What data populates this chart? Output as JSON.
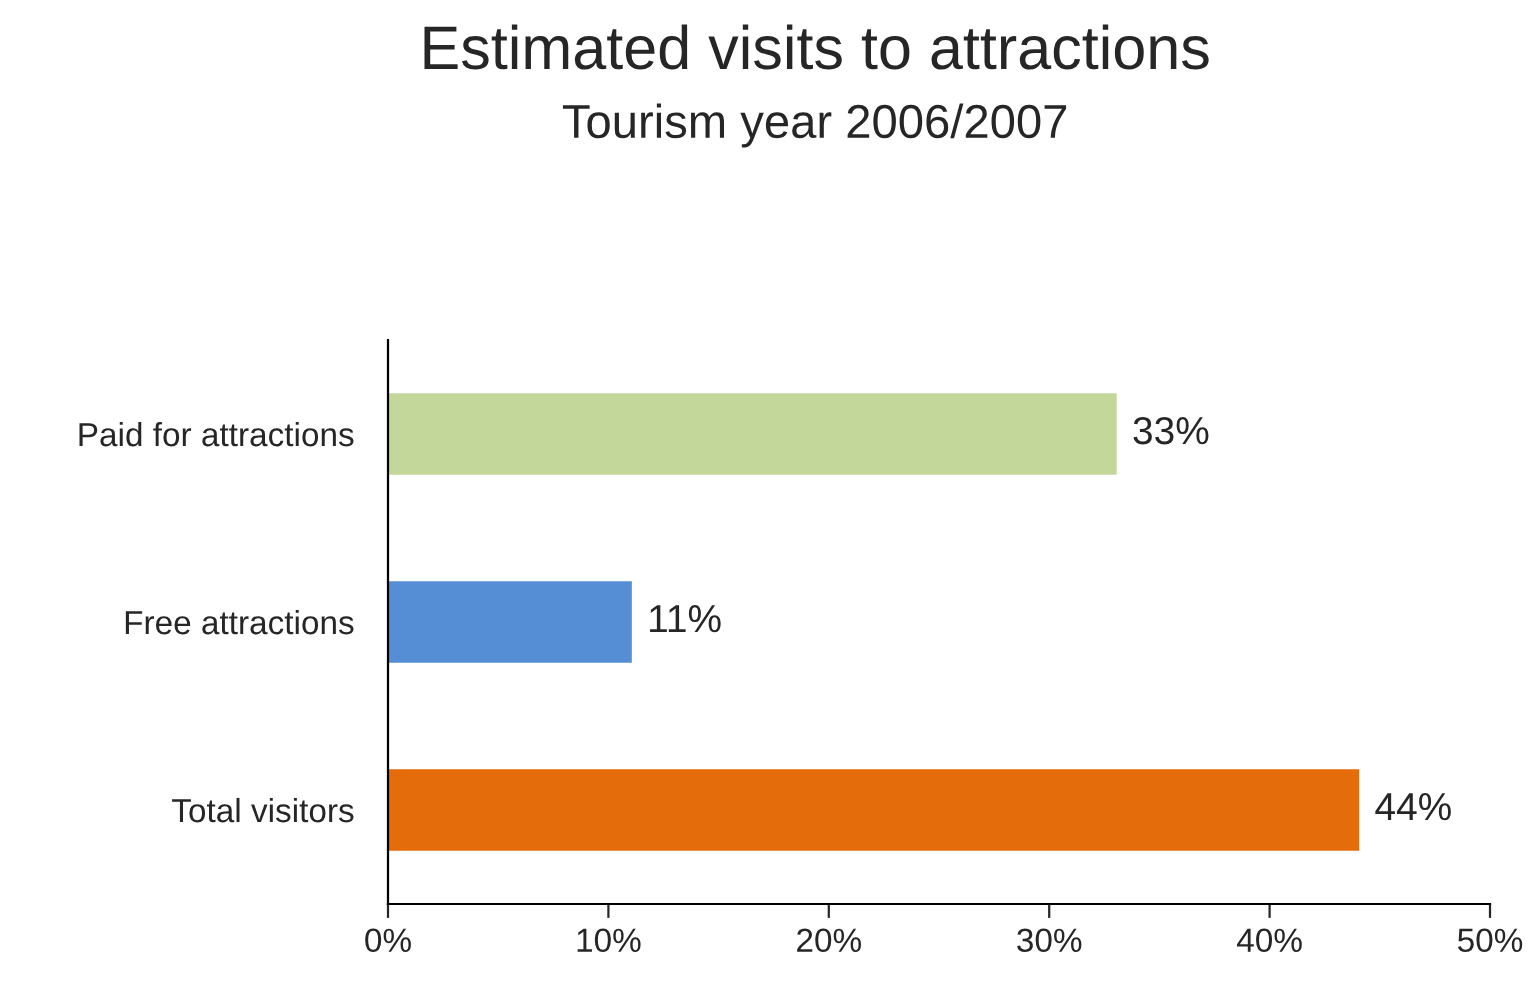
{
  "chart_data": {
    "type": "bar",
    "orientation": "horizontal",
    "title": "Estimated visits to attractions",
    "subtitle": "Tourism year 2006/2007",
    "categories": [
      "Paid for attractions",
      "Free attractions",
      "Total visitors"
    ],
    "values": [
      33,
      11,
      44
    ],
    "colors": [
      "#c4d79b",
      "#558ed5",
      "#e46c0a"
    ],
    "value_labels": [
      "33%",
      "11%",
      "44%"
    ],
    "xlim": [
      0,
      50
    ],
    "xticks": [
      {
        "value": 0,
        "label": "0%"
      },
      {
        "value": 10,
        "label": "10%"
      },
      {
        "value": 20,
        "label": "20%"
      },
      {
        "value": 30,
        "label": "30%"
      },
      {
        "value": 40,
        "label": "40%"
      },
      {
        "value": 50,
        "label": "50%"
      }
    ],
    "grid": false,
    "legend": false
  }
}
